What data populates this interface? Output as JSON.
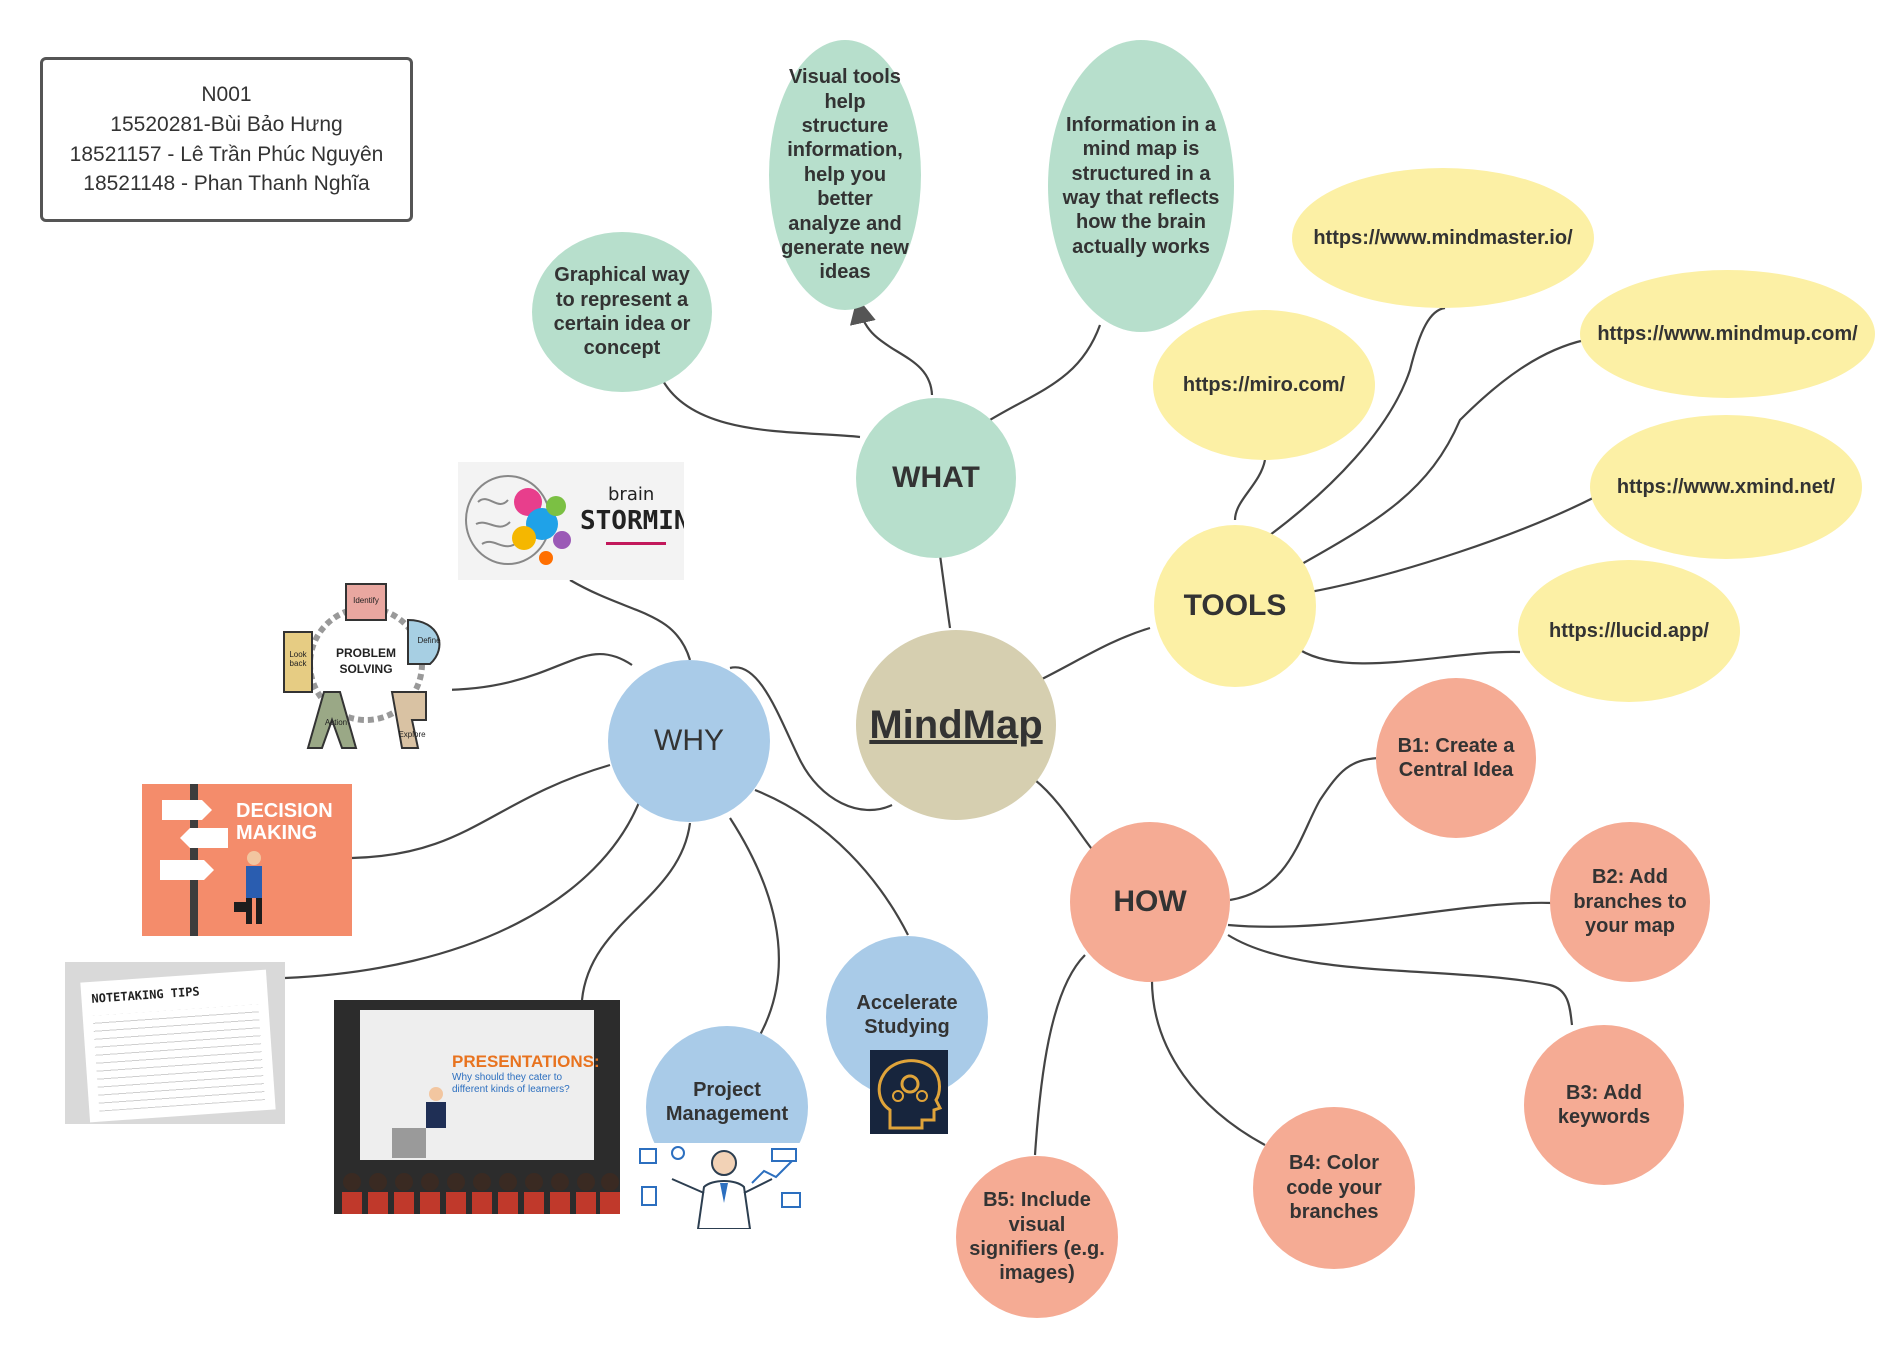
{
  "info_box": {
    "lines": [
      "N001",
      "15520281-Bùi Bảo Hưng",
      "18521157 - Lê Trần Phúc Nguyên",
      "18521148 - Phan Thanh Nghĩa"
    ]
  },
  "center": {
    "label": "MindMap"
  },
  "what": {
    "label": "WHAT",
    "children": [
      "Graphical way to represent a certain idea or concept",
      "Visual tools help structure information, help you better analyze and generate new ideas",
      "Information in a mind map is structured in a way that reflects how the brain actually works"
    ]
  },
  "tools": {
    "label": "TOOLS",
    "links": [
      "https://miro.com/",
      "https://www.mindmaster.io/",
      "https://www.mindmup.com/",
      "https://www.xmind.net/",
      "https://lucid.app/"
    ]
  },
  "how": {
    "label": "HOW",
    "steps": [
      "B1: Create a Central Idea",
      "B2: Add branches to your map",
      "B3: Add keywords",
      "B4: Color code your branches",
      "B5: Include visual signifiers (e.g. images)"
    ]
  },
  "why": {
    "label": "WHY",
    "children": [
      "Accelerate Studying",
      "Project Management"
    ],
    "images": {
      "brainstorming": {
        "line1": "brain",
        "line2": "STORMING"
      },
      "problem_solving": {
        "center": [
          "PROBLEM",
          "SOLVING"
        ],
        "letters": [
          "I",
          "D",
          "E",
          "A",
          "L"
        ],
        "words": [
          "Identify",
          "Define",
          "Explore",
          "Action",
          "Look back"
        ]
      },
      "decision_making": {
        "line1": "DECISION",
        "line2": "MAKING"
      },
      "notetaking": {
        "title": "NOTETAKING TIPS"
      },
      "presentations": {
        "title": "PRESENTATIONS:",
        "subtitle": "Why should they cater to different kinds of learners?"
      }
    }
  },
  "colors": {
    "what": "#b7dfcc",
    "tools": "#fcf0a5",
    "how": "#f5ab94",
    "why": "#a9cbe8",
    "center": "#d6cfb0",
    "line": "#444444"
  }
}
